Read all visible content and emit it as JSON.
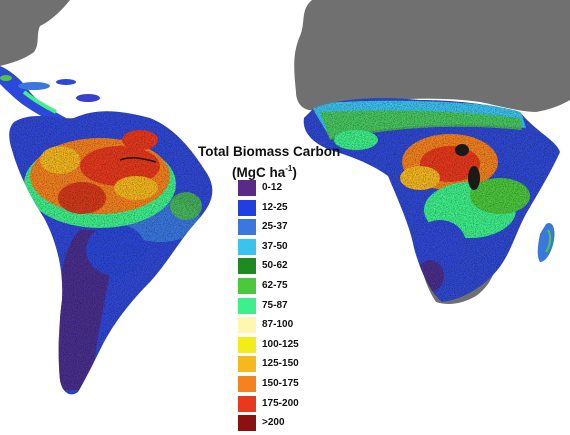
{
  "legend": {
    "title_line1": "Total Biomass Carbon",
    "unit_prefix": "(MgC ha",
    "unit_exp": "-1",
    "unit_suffix": ")",
    "items": [
      {
        "label": "0-12",
        "color": "#5b2a86"
      },
      {
        "label": "12-25",
        "color": "#1f3fe0"
      },
      {
        "label": "25-37",
        "color": "#3a78e0"
      },
      {
        "label": "37-50",
        "color": "#3bc3f0"
      },
      {
        "label": "50-62",
        "color": "#1f8a1f"
      },
      {
        "label": "62-75",
        "color": "#4cc83c"
      },
      {
        "label": "75-87",
        "color": "#3ef08a"
      },
      {
        "label": "87-100",
        "color": "#fff6b0"
      },
      {
        "label": "100-125",
        "color": "#f2ec18"
      },
      {
        "label": "125-150",
        "color": "#f5b81f"
      },
      {
        "label": "150-175",
        "color": "#f5821f"
      },
      {
        "label": "175-200",
        "color": "#e8391d"
      },
      {
        "label": ">200",
        "color": "#8c1010"
      }
    ]
  },
  "map_colors": {
    "land_outside": "#707070",
    "water": "#ffffff"
  }
}
